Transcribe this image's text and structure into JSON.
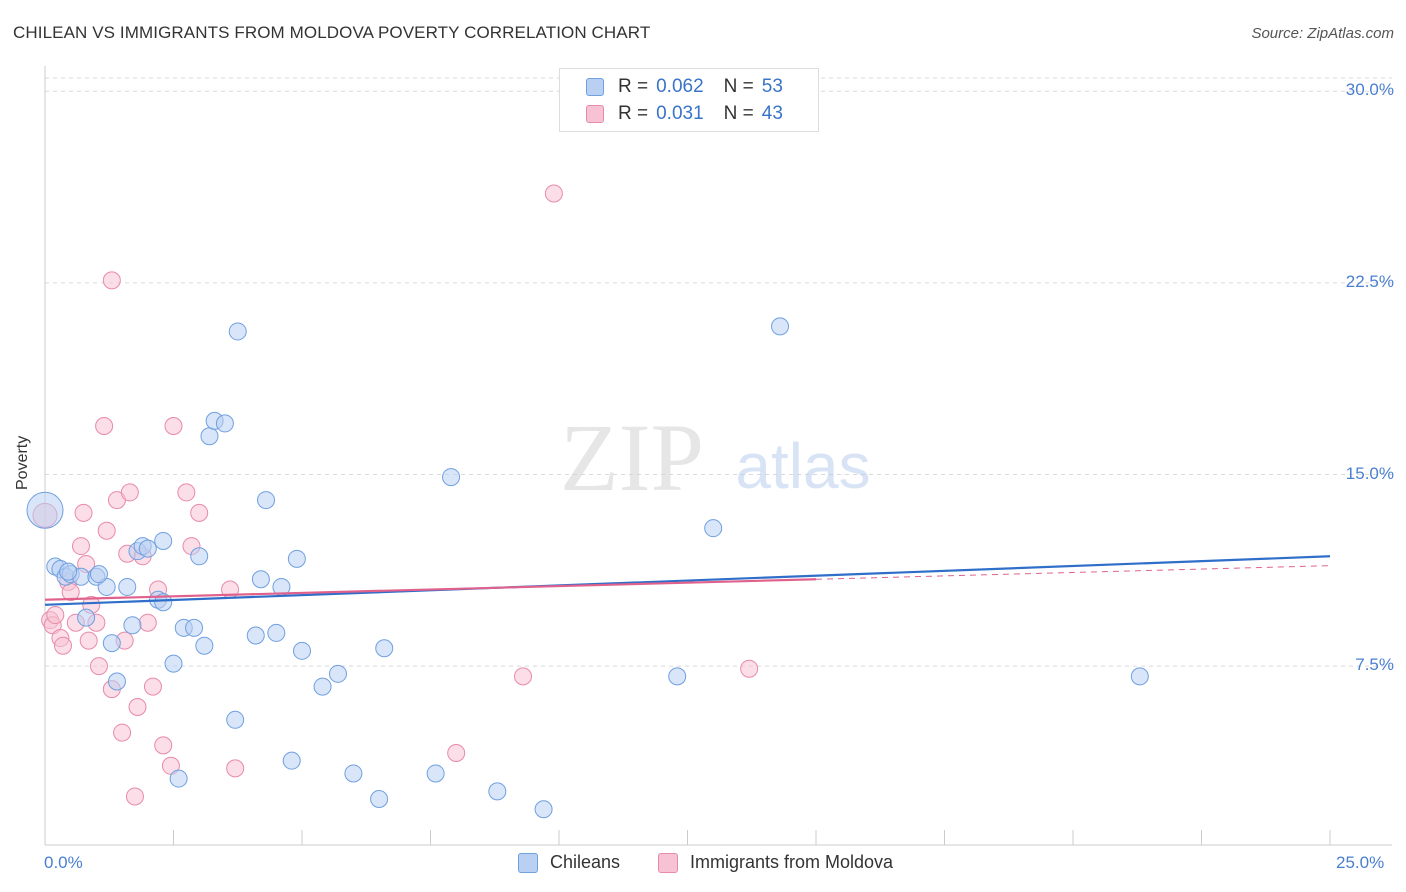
{
  "title": "CHILEAN VS IMMIGRANTS FROM MOLDOVA POVERTY CORRELATION CHART",
  "source": "Source: ZipAtlas.com",
  "watermark": {
    "zip": "ZIP",
    "atlas": "atlas"
  },
  "colors": {
    "blue": "#6fa0e0",
    "blue_fill": "#b9d0f3",
    "blue_line": "#2f6fc9",
    "pink": "#e88aaa",
    "pink_fill": "#f7c2d3",
    "pink_line": "#e0628c",
    "grid": "#d9d9d9",
    "tick_label": "#4a7fd0"
  },
  "legend": {
    "r_label": "R =",
    "n_label": "N =",
    "rows": [
      {
        "series": "blue",
        "r": "0.062",
        "n": "53"
      },
      {
        "series": "pink",
        "r": "0.031",
        "n": "43"
      }
    ]
  },
  "chart_data": {
    "type": "scatter",
    "title": "CHILEAN VS IMMIGRANTS FROM MOLDOVA POVERTY CORRELATION CHART",
    "xlabel": "",
    "ylabel": "Poverty",
    "xlim": [
      0,
      25
    ],
    "ylim": [
      0,
      31
    ],
    "y_ticks": [
      7.5,
      15.0,
      22.5,
      30.0
    ],
    "y_tick_labels": [
      "7.5%",
      "15.0%",
      "22.5%",
      "30.0%"
    ],
    "x_tick_labels": [
      "0.0%",
      "25.0%"
    ],
    "grid": true,
    "legend_position": "top-center",
    "series": [
      {
        "name": "Chileans",
        "color": "blue",
        "trend": {
          "x": [
            0,
            25
          ],
          "y": [
            9.9,
            11.8
          ]
        },
        "points": [
          [
            0.0,
            13.6
          ],
          [
            0.2,
            11.4
          ],
          [
            0.3,
            11.3
          ],
          [
            0.4,
            11.0
          ],
          [
            0.5,
            11.1
          ],
          [
            0.7,
            11.0
          ],
          [
            0.8,
            9.4
          ],
          [
            1.0,
            11.0
          ],
          [
            1.2,
            10.6
          ],
          [
            1.3,
            8.4
          ],
          [
            1.4,
            6.9
          ],
          [
            1.6,
            10.6
          ],
          [
            1.7,
            9.1
          ],
          [
            1.8,
            12.0
          ],
          [
            1.9,
            12.2
          ],
          [
            2.0,
            12.1
          ],
          [
            2.2,
            10.1
          ],
          [
            2.3,
            10.0
          ],
          [
            2.3,
            12.4
          ],
          [
            2.5,
            7.6
          ],
          [
            2.6,
            3.1
          ],
          [
            2.7,
            9.0
          ],
          [
            2.9,
            9.0
          ],
          [
            3.0,
            11.8
          ],
          [
            3.1,
            8.3
          ],
          [
            3.2,
            16.5
          ],
          [
            3.3,
            17.1
          ],
          [
            3.5,
            17.0
          ],
          [
            3.7,
            5.4
          ],
          [
            3.75,
            20.6
          ],
          [
            4.1,
            8.7
          ],
          [
            4.2,
            10.9
          ],
          [
            4.3,
            14.0
          ],
          [
            4.5,
            8.8
          ],
          [
            4.6,
            10.6
          ],
          [
            4.8,
            3.8
          ],
          [
            4.9,
            11.7
          ],
          [
            5.0,
            8.1
          ],
          [
            5.4,
            6.7
          ],
          [
            5.7,
            7.2
          ],
          [
            6.0,
            3.3
          ],
          [
            6.5,
            2.3
          ],
          [
            6.6,
            8.2
          ],
          [
            7.6,
            3.3
          ],
          [
            7.9,
            14.9
          ],
          [
            8.8,
            2.6
          ],
          [
            9.7,
            1.9
          ],
          [
            12.3,
            7.1
          ],
          [
            13.0,
            12.9
          ],
          [
            14.3,
            20.8
          ],
          [
            21.3,
            7.1
          ],
          [
            0.45,
            11.2
          ],
          [
            1.05,
            11.1
          ]
        ]
      },
      {
        "name": "Immigrants from Moldova",
        "color": "pink",
        "trend": {
          "x": [
            0,
            15
          ],
          "y": [
            10.1,
            10.9
          ]
        },
        "points": [
          [
            0.0,
            13.4
          ],
          [
            0.1,
            9.3
          ],
          [
            0.15,
            9.1
          ],
          [
            0.2,
            9.5
          ],
          [
            0.3,
            8.6
          ],
          [
            0.35,
            8.3
          ],
          [
            0.45,
            10.8
          ],
          [
            0.5,
            10.4
          ],
          [
            0.6,
            9.2
          ],
          [
            0.7,
            12.2
          ],
          [
            0.75,
            13.5
          ],
          [
            0.8,
            11.5
          ],
          [
            0.85,
            8.5
          ],
          [
            0.9,
            9.9
          ],
          [
            1.0,
            9.2
          ],
          [
            1.05,
            7.5
          ],
          [
            1.15,
            16.9
          ],
          [
            1.2,
            12.8
          ],
          [
            1.3,
            6.6
          ],
          [
            1.4,
            14.0
          ],
          [
            1.5,
            4.9
          ],
          [
            1.55,
            8.5
          ],
          [
            1.6,
            11.9
          ],
          [
            1.65,
            14.3
          ],
          [
            1.75,
            2.4
          ],
          [
            1.8,
            5.9
          ],
          [
            1.9,
            11.8
          ],
          [
            2.0,
            9.2
          ],
          [
            2.1,
            6.7
          ],
          [
            2.2,
            10.5
          ],
          [
            2.3,
            4.4
          ],
          [
            2.45,
            3.6
          ],
          [
            2.5,
            16.9
          ],
          [
            2.75,
            14.3
          ],
          [
            2.85,
            12.2
          ],
          [
            3.0,
            13.5
          ],
          [
            3.6,
            10.5
          ],
          [
            3.7,
            3.5
          ],
          [
            1.3,
            22.6
          ],
          [
            8.0,
            4.1
          ],
          [
            9.3,
            7.1
          ],
          [
            9.9,
            26.0
          ],
          [
            13.7,
            7.4
          ]
        ]
      }
    ]
  },
  "bottom_legend": [
    {
      "label": "Chileans",
      "series": "blue"
    },
    {
      "label": "Immigrants from Moldova",
      "series": "pink"
    }
  ]
}
